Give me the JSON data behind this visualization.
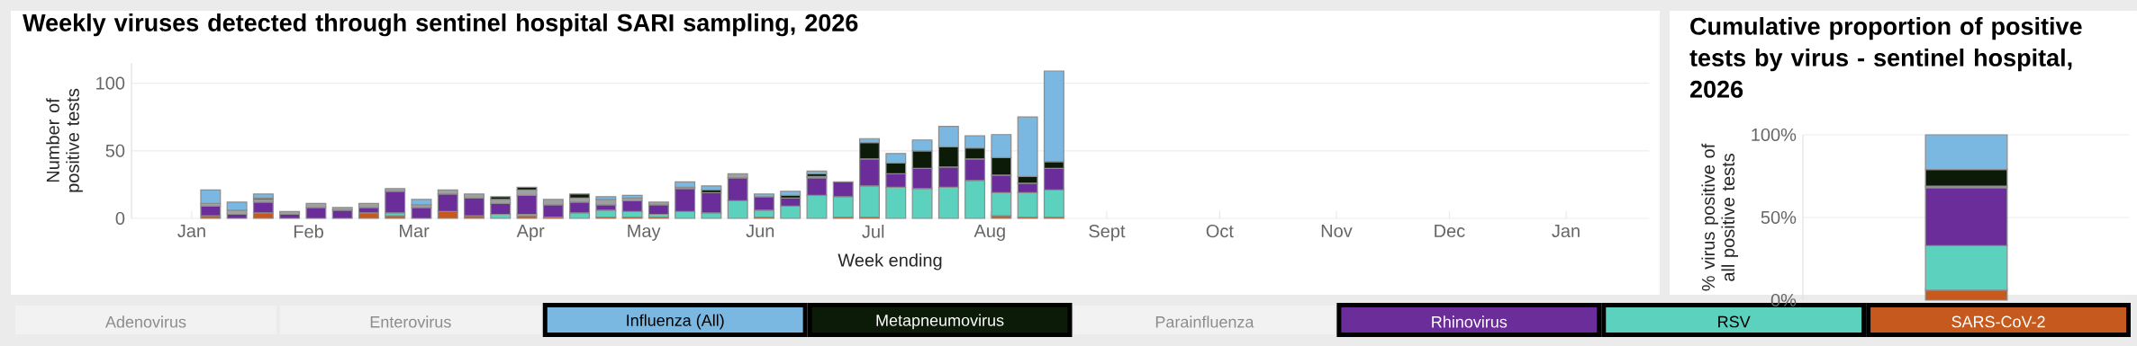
{
  "chart_data": [
    {
      "type": "bar",
      "title": "Weekly viruses detected through sentinel hospital SARI sampling, 2026",
      "xlabel": "Week ending",
      "ylabel": "Number of positive tests",
      "x": [
        "2026-01-06",
        "2026-01-13",
        "2026-01-20",
        "2026-01-27",
        "2026-02-03",
        "2026-02-10",
        "2026-02-17",
        "2026-02-24",
        "2026-03-03",
        "2026-03-10",
        "2026-03-17",
        "2026-03-24",
        "2026-03-31",
        "2026-04-07",
        "2026-04-14",
        "2026-04-21",
        "2026-04-28",
        "2026-05-05",
        "2026-05-12",
        "2026-05-19",
        "2026-05-26",
        "2026-06-02",
        "2026-06-09",
        "2026-06-16",
        "2026-06-23",
        "2026-06-30",
        "2026-07-07",
        "2026-07-14",
        "2026-07-21",
        "2026-07-28",
        "2026-08-04",
        "2026-08-11",
        "2026-08-18"
      ],
      "xlim": [
        "2025-12-16",
        "2027-01-23"
      ],
      "xticks": [
        {
          "value": "2026-01-01",
          "label": "Jan"
        },
        {
          "value": "2026-02-01",
          "label": "Feb"
        },
        {
          "value": "2026-03-01",
          "label": "Mar"
        },
        {
          "value": "2026-04-01",
          "label": "Apr"
        },
        {
          "value": "2026-05-01",
          "label": "May"
        },
        {
          "value": "2026-06-01",
          "label": "Jun"
        },
        {
          "value": "2026-07-01",
          "label": "Jul"
        },
        {
          "value": "2026-08-01",
          "label": "Aug"
        },
        {
          "value": "2026-09-01",
          "label": "Sept"
        },
        {
          "value": "2026-10-01",
          "label": "Oct"
        },
        {
          "value": "2026-11-01",
          "label": "Nov"
        },
        {
          "value": "2026-12-01",
          "label": "Dec"
        },
        {
          "value": "2027-01-01",
          "label": "Jan"
        }
      ],
      "ylim": [
        0,
        115
      ],
      "yticks": [
        0,
        50,
        100
      ],
      "stacked": true,
      "grid": "y",
      "legend": "bottom",
      "series": [
        {
          "name": "SARS-CoV-2",
          "color": "#c65a1e",
          "values": [
            2,
            null,
            4,
            null,
            null,
            null,
            4,
            2,
            null,
            5,
            2,
            null,
            2,
            1,
            null,
            1,
            1,
            1,
            null,
            null,
            null,
            1,
            null,
            null,
            1,
            1,
            null,
            null,
            null,
            null,
            2,
            1,
            1
          ]
        },
        {
          "name": "RSV",
          "color": "#5bd1be",
          "values": [
            null,
            null,
            null,
            null,
            null,
            null,
            null,
            2,
            null,
            null,
            null,
            3,
            1,
            null,
            4,
            5,
            4,
            2,
            5,
            4,
            13,
            5,
            9,
            17,
            15,
            23,
            23,
            22,
            23,
            28,
            17,
            18,
            20
          ]
        },
        {
          "name": "Rhinovirus",
          "color": "#6b2d9a",
          "values": [
            7,
            3,
            8,
            3,
            8,
            6,
            4,
            16,
            8,
            13,
            13,
            8,
            14,
            9,
            8,
            4,
            8,
            7,
            17,
            15,
            17,
            10,
            6,
            13,
            11,
            20,
            10,
            15,
            15,
            16,
            13,
            7,
            16
          ]
        },
        {
          "color": "#a0a0a0",
          "values": [
            2,
            3,
            2,
            2,
            3,
            2,
            3,
            2,
            2,
            3,
            3,
            3,
            4,
            4,
            3,
            4,
            2,
            2,
            1,
            null,
            3,
            null,
            null,
            1,
            null,
            null,
            null,
            null,
            null,
            null,
            null,
            null,
            null
          ]
        },
        {
          "name": "Parainfluenza",
          "values": [
            null,
            null,
            null,
            null,
            null,
            null,
            null,
            null,
            null,
            null,
            null,
            null,
            null,
            null,
            null,
            null,
            null,
            null,
            null,
            null,
            null,
            null,
            null,
            null,
            null,
            null,
            null,
            null,
            null,
            null,
            null,
            null,
            null
          ]
        },
        {
          "name": "Metapneumovirus",
          "color": "#0c1a08",
          "values": [
            null,
            null,
            1,
            null,
            null,
            null,
            null,
            null,
            null,
            null,
            null,
            2,
            2,
            null,
            3,
            null,
            null,
            null,
            null,
            2,
            null,
            null,
            2,
            2,
            null,
            12,
            8,
            13,
            15,
            8,
            13,
            5,
            5
          ]
        },
        {
          "name": "Influenza (All)",
          "color": "#7ab8e2",
          "values": [
            10,
            6,
            3,
            null,
            null,
            null,
            null,
            null,
            4,
            null,
            null,
            null,
            null,
            null,
            null,
            2,
            2,
            null,
            4,
            3,
            null,
            2,
            3,
            2,
            null,
            3,
            7,
            8,
            15,
            9,
            17,
            44,
            67
          ]
        },
        {
          "name": "Enterovirus",
          "values": [
            null,
            null,
            null,
            null,
            null,
            null,
            null,
            null,
            null,
            null,
            null,
            null,
            null,
            null,
            null,
            null,
            null,
            null,
            null,
            null,
            null,
            null,
            null,
            null,
            null,
            null,
            null,
            null,
            null,
            null,
            null,
            null,
            null
          ]
        },
        {
          "name": "Adenovirus",
          "values": [
            null,
            null,
            null,
            null,
            null,
            null,
            null,
            null,
            null,
            null,
            null,
            null,
            null,
            null,
            null,
            null,
            null,
            null,
            null,
            null,
            null,
            null,
            null,
            null,
            null,
            null,
            null,
            null,
            null,
            null,
            null,
            null,
            null
          ]
        }
      ]
    },
    {
      "type": "bar",
      "title": "Cumulative proportion of positive tests by virus - sentinel hospital, 2026",
      "ylabel": "% virus positive of all positive tests",
      "categories": [
        null
      ],
      "ylim": [
        0,
        100
      ],
      "yticks": [
        {
          "value": 0,
          "label": "0%"
        },
        {
          "value": 50,
          "label": "50%"
        },
        {
          "value": 100,
          "label": "100%"
        }
      ],
      "stacked": true,
      "grid": "y",
      "series": [
        {
          "color": "#c65a1e",
          "values": [
            6
          ]
        },
        {
          "color": "#5bd1be",
          "values": [
            27
          ]
        },
        {
          "color": "#6b2d9a",
          "values": [
            35
          ]
        },
        {
          "color": "#a0a0a0",
          "values": [
            1
          ]
        },
        {
          "color": "#0c1a08",
          "values": [
            10
          ]
        },
        {
          "color": "#7ab8e2",
          "values": [
            21
          ]
        }
      ]
    }
  ]
}
